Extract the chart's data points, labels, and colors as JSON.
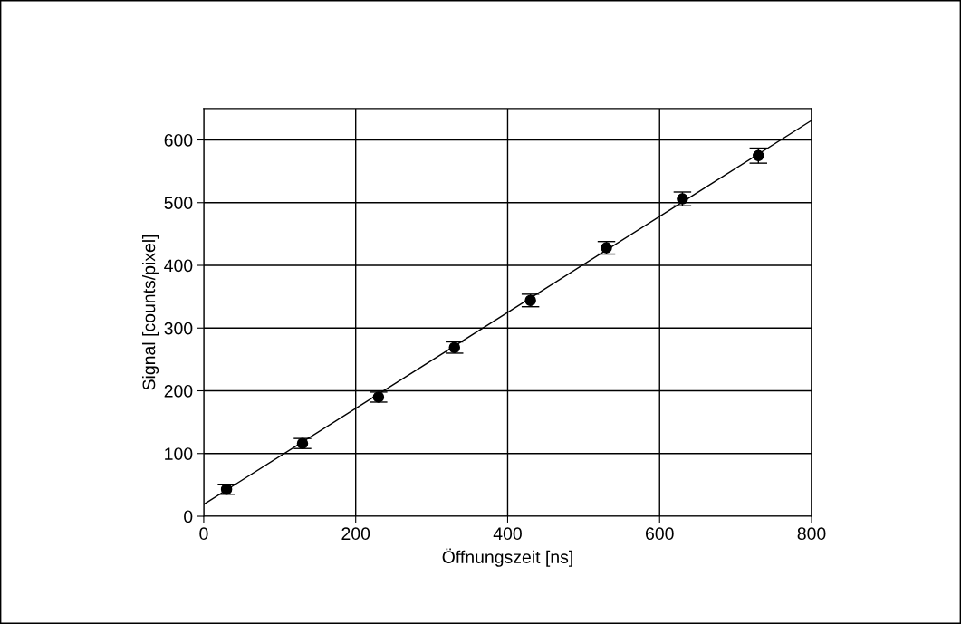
{
  "chart_data": {
    "type": "scatter",
    "xlabel": "Öffnungszeit [ns]",
    "ylabel": "Signal [counts/pixel]",
    "x": [
      30,
      130,
      230,
      330,
      430,
      530,
      630,
      730
    ],
    "series": [
      {
        "color": "#000000",
        "values": [
          43,
          116,
          190,
          269,
          344,
          428,
          506,
          575
        ],
        "errors": [
          8,
          8,
          8,
          9,
          10,
          10,
          11,
          12
        ],
        "marker": "circle"
      },
      {
        "type": "line",
        "color": "#000000",
        "x": [
          0,
          800
        ],
        "values": [
          19,
          631
        ],
        "marker": "none",
        "line_style": "solid"
      }
    ],
    "xlim": [
      0,
      800
    ],
    "ylim": [
      0,
      650
    ],
    "xticks": [
      0,
      200,
      400,
      600,
      800
    ],
    "yticks": [
      0,
      100,
      200,
      300,
      400,
      500,
      600
    ],
    "grid": true
  }
}
